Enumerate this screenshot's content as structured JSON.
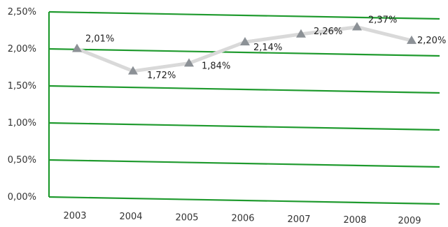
{
  "chart_data": {
    "type": "line",
    "title": "",
    "xlabel": "",
    "ylabel": "",
    "categories": [
      "2003",
      "2004",
      "2005",
      "2006",
      "2007",
      "2008",
      "2009"
    ],
    "series": [
      {
        "values": [
          2.01,
          1.72,
          1.84,
          2.14,
          2.26,
          2.37,
          2.2
        ],
        "labels": [
          "2,01%",
          "1,72%",
          "1,84%",
          "2,14%",
          "2,26%",
          "2,37%",
          "2,20%"
        ]
      }
    ],
    "ylim": [
      0,
      2.5
    ],
    "yticks": [
      0,
      0.5,
      1.0,
      1.5,
      2.0,
      2.5
    ],
    "ytick_labels": [
      "0,00%",
      "0,50%",
      "1,00%",
      "1,50%",
      "2,00%",
      "2,50%"
    ],
    "grid": true,
    "legend": "none",
    "colors": {
      "grid": "#1f9a2e",
      "line": "#d9d9d9",
      "marker": "#8c9196"
    }
  }
}
